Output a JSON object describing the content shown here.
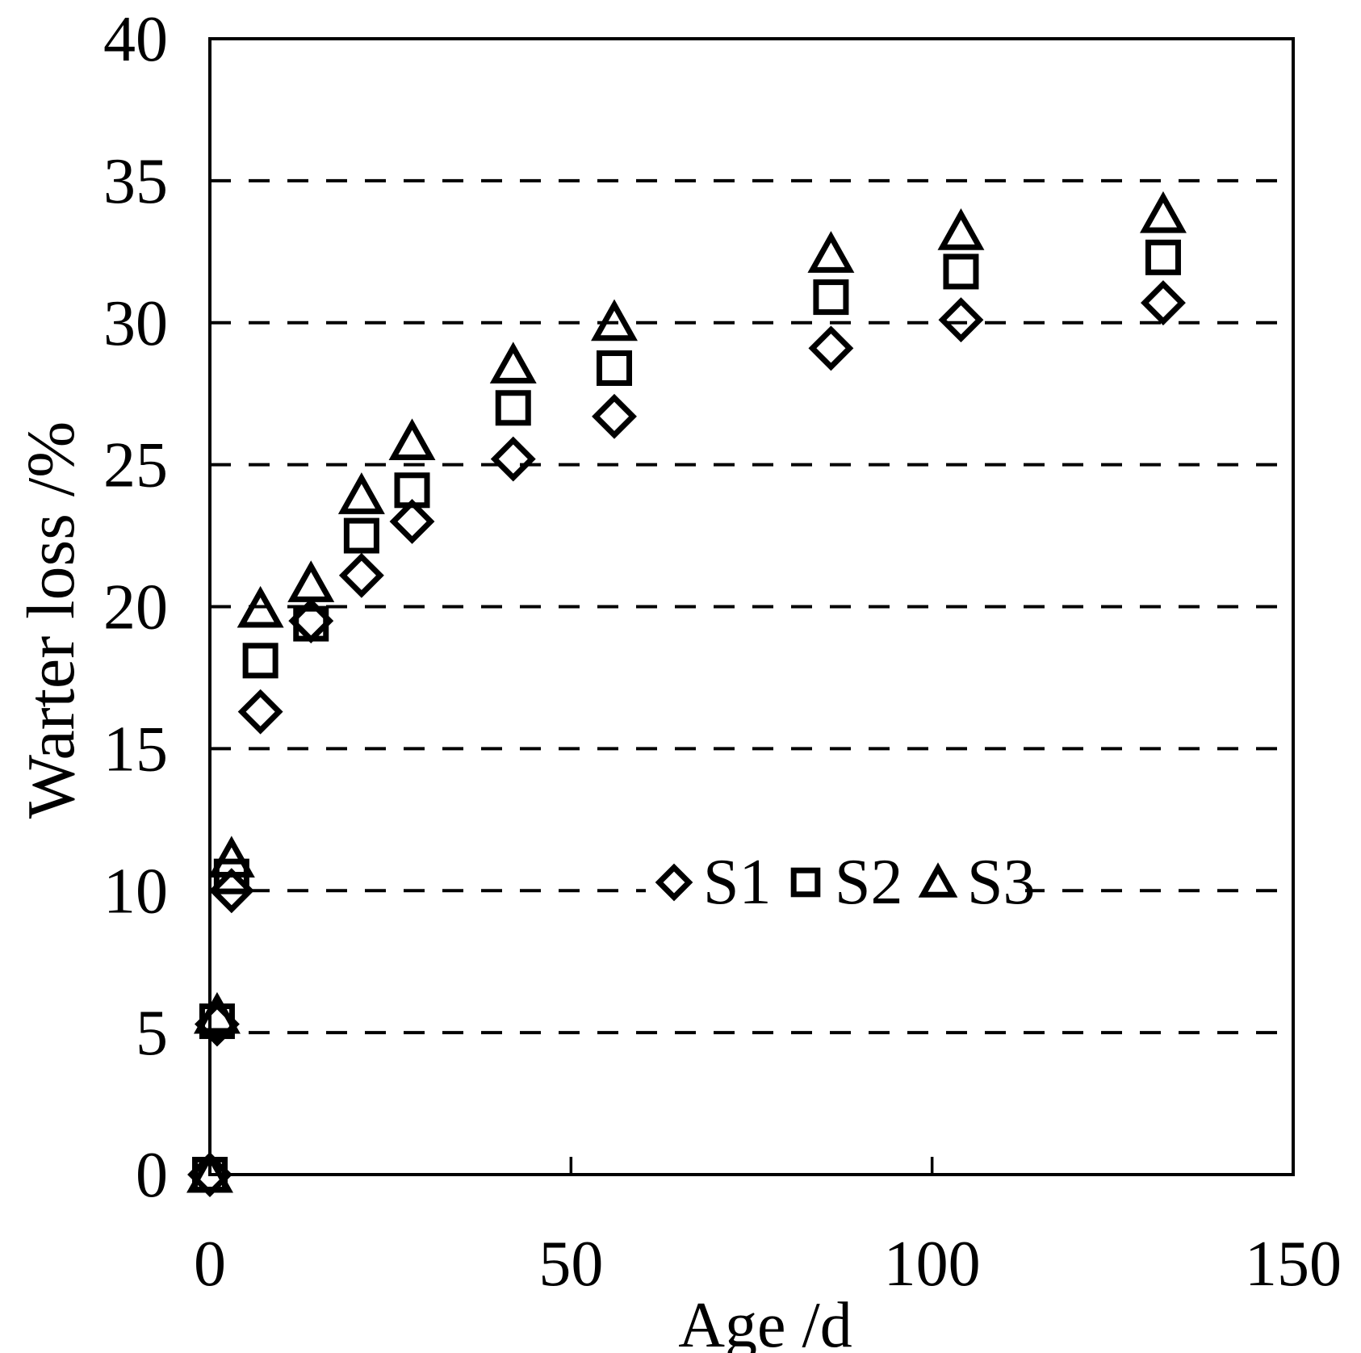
{
  "chart_data": {
    "type": "scatter",
    "title": "",
    "xlabel": "Age /d",
    "ylabel": "Warter loss /%",
    "xlim": [
      0,
      150
    ],
    "ylim": [
      0,
      40
    ],
    "x_tick_labels": [
      0,
      50,
      100,
      150
    ],
    "x_inner_ticks": [
      50,
      100
    ],
    "y_tick_labels": [
      0,
      5,
      10,
      15,
      20,
      25,
      30,
      35,
      40
    ],
    "y_gridlines": [
      5,
      10,
      15,
      20,
      25,
      30,
      35
    ],
    "grid_style": "horizontal dashed",
    "legend_position": "inside, on y=10 gridline",
    "legend": [
      {
        "name": "S1",
        "marker": "diamond"
      },
      {
        "name": "S2",
        "marker": "square"
      },
      {
        "name": "S3",
        "marker": "triangle"
      }
    ],
    "x": [
      0,
      1,
      3,
      7,
      14,
      21,
      28,
      42,
      56,
      86,
      104,
      132
    ],
    "series": [
      {
        "name": "S1",
        "marker": "diamond",
        "values": [
          0,
          5.3,
          10.0,
          16.3,
          19.5,
          21.1,
          23.0,
          25.2,
          26.7,
          29.1,
          30.1,
          30.7
        ]
      },
      {
        "name": "S2",
        "marker": "square",
        "values": [
          0,
          5.4,
          10.5,
          18.1,
          19.4,
          22.5,
          24.1,
          27.0,
          28.4,
          30.9,
          31.8,
          32.3
        ]
      },
      {
        "name": "S3",
        "marker": "triangle",
        "values": [
          0,
          5.6,
          11.1,
          19.9,
          20.8,
          23.9,
          25.8,
          28.5,
          30.0,
          32.4,
          33.2,
          33.8
        ]
      }
    ],
    "colors": {
      "stroke": "#000000",
      "background": "#ffffff"
    }
  }
}
